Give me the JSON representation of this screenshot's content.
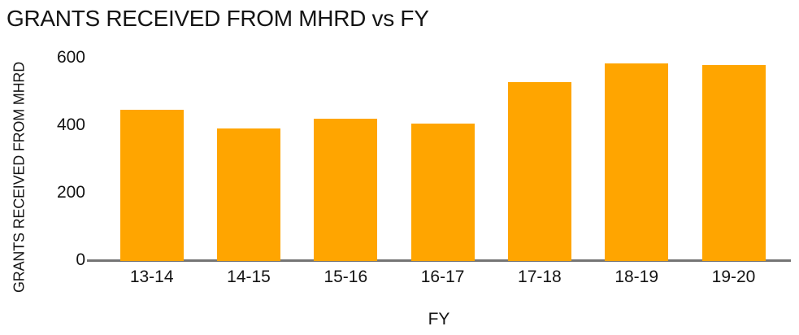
{
  "chart_data": {
    "type": "bar",
    "title": "GRANTS RECEIVED FROM MHRD vs FY",
    "xlabel": "FY",
    "ylabel": "GRANTS RECEIVED FROM MHRD",
    "categories": [
      "13-14",
      "14-15",
      "15-16",
      "16-17",
      "17-18",
      "18-19",
      "19-20"
    ],
    "values": [
      445,
      390,
      418,
      405,
      527,
      583,
      577
    ],
    "yticks": [
      0,
      200,
      400,
      600
    ],
    "ylim": [
      0,
      600
    ],
    "grid": false,
    "legend_position": "none",
    "bar_color": "#ffa500",
    "axis_line_color": "#757575",
    "text_color": "#141414"
  }
}
